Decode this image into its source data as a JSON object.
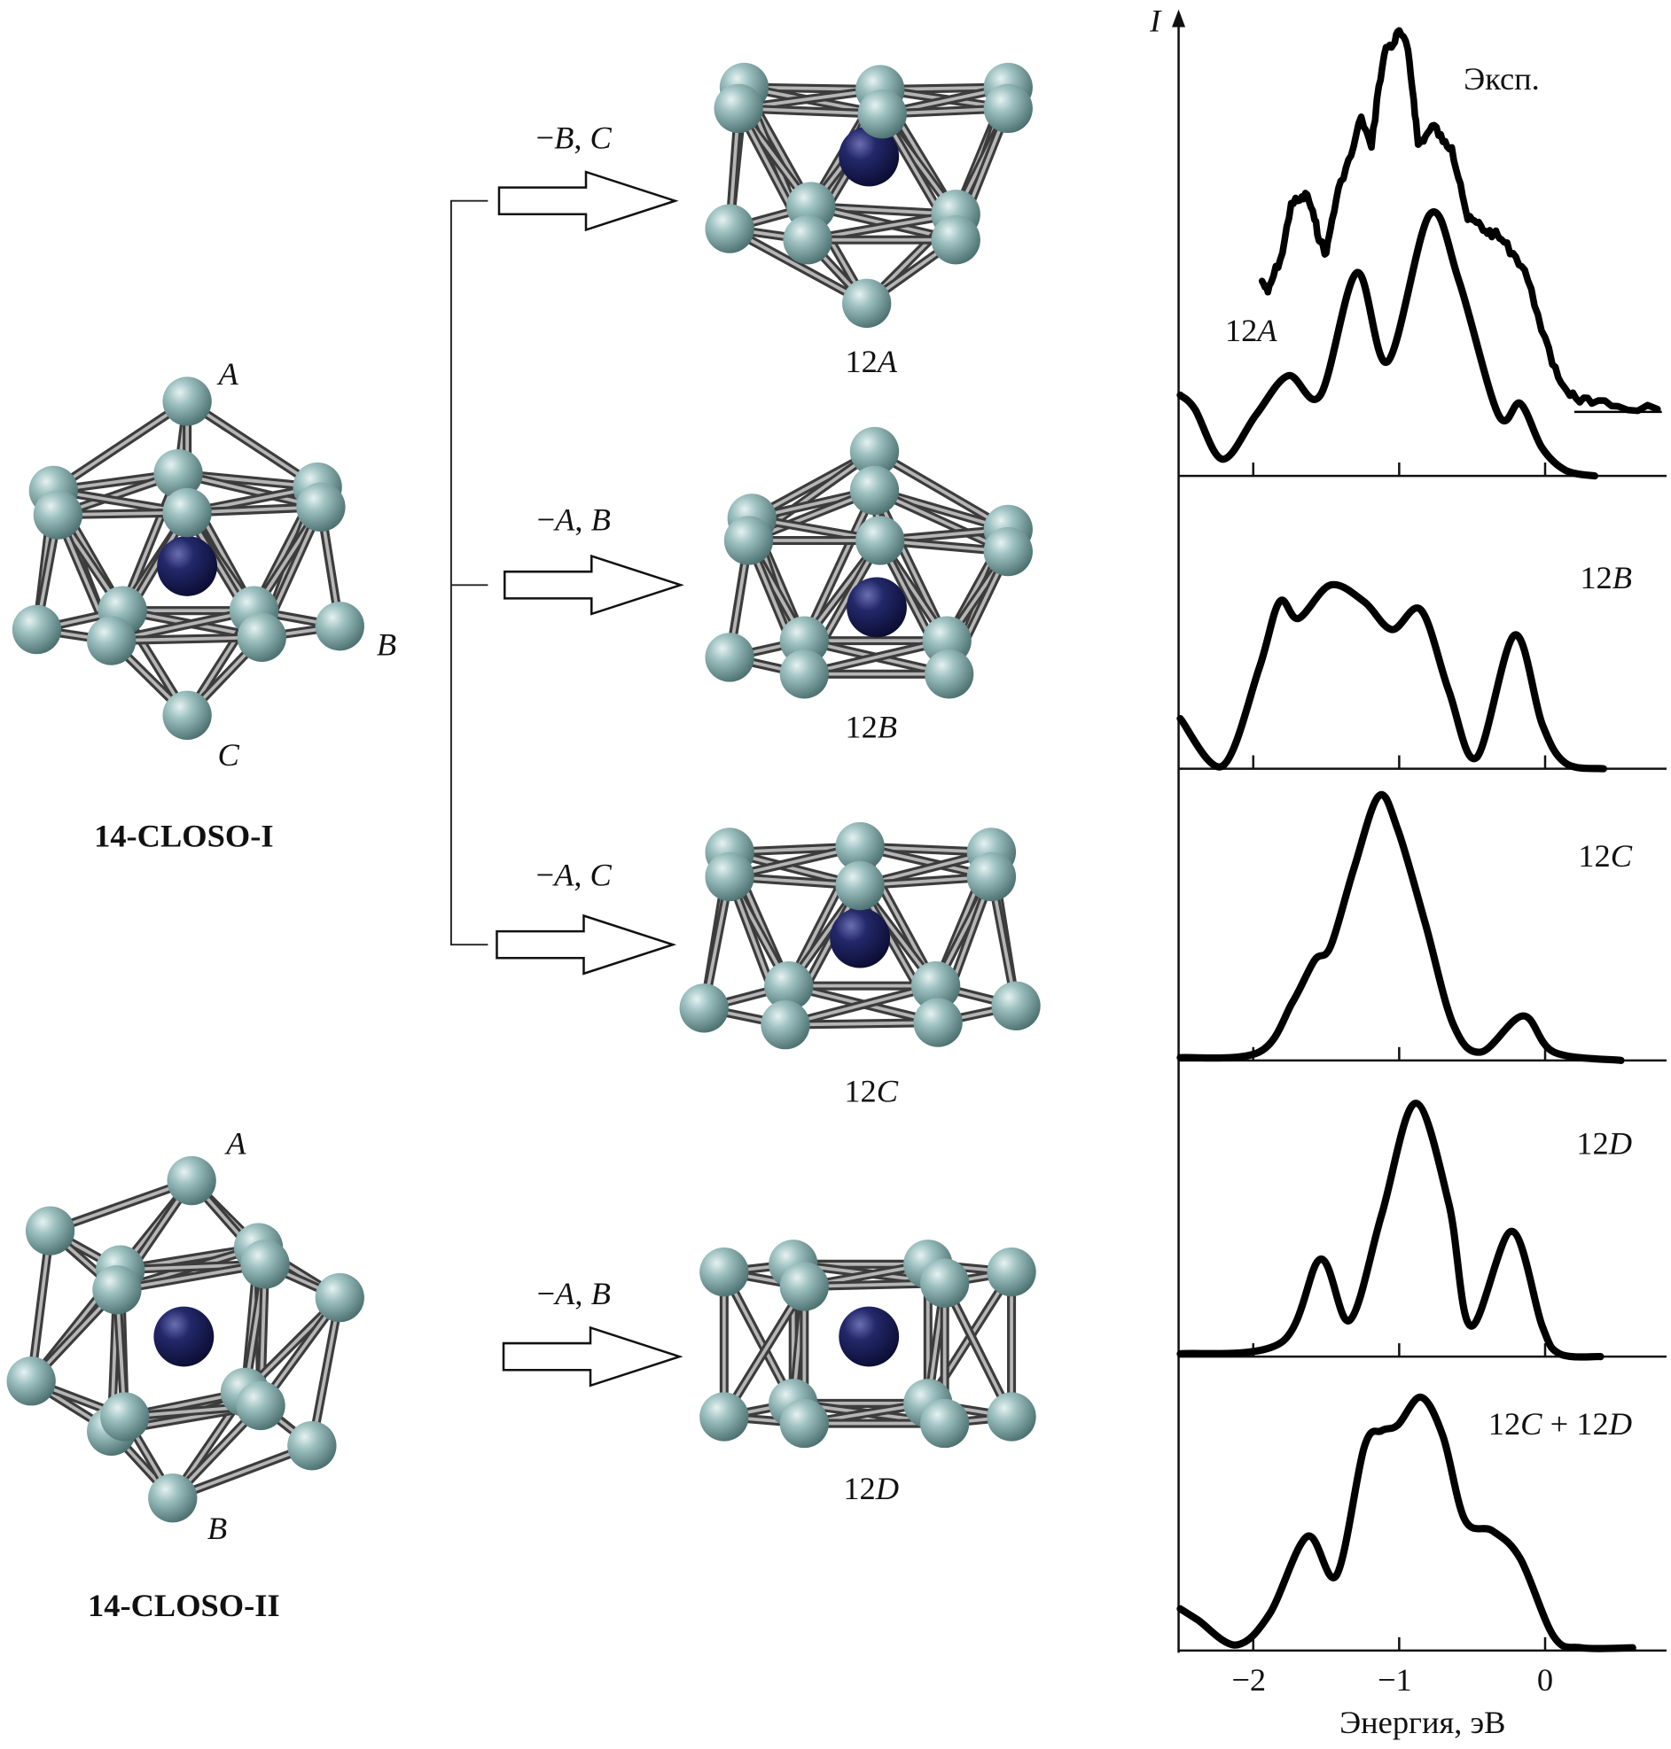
{
  "scheme": {
    "parents": [
      {
        "name": "14-CLOSO-I",
        "atom_labels": [
          "A",
          "B",
          "C"
        ]
      },
      {
        "name": "14-CLOSO-II",
        "atom_labels": [
          "A",
          "B"
        ]
      }
    ],
    "transitions": [
      {
        "removed": [
          {
            "t": "−"
          },
          {
            "t": "B",
            "i": true
          },
          {
            "t": ", "
          },
          {
            "t": "C",
            "i": true
          }
        ],
        "product": [
          {
            "t": "12"
          },
          {
            "t": "A",
            "i": true
          }
        ]
      },
      {
        "removed": [
          {
            "t": "−"
          },
          {
            "t": "A",
            "i": true
          },
          {
            "t": ", "
          },
          {
            "t": "B",
            "i": true
          }
        ],
        "product": [
          {
            "t": "12"
          },
          {
            "t": "B",
            "i": true
          }
        ]
      },
      {
        "removed": [
          {
            "t": "−"
          },
          {
            "t": "A",
            "i": true
          },
          {
            "t": ", "
          },
          {
            "t": "C",
            "i": true
          }
        ],
        "product": [
          {
            "t": "12"
          },
          {
            "t": "C",
            "i": true
          }
        ]
      },
      {
        "removed": [
          {
            "t": "−"
          },
          {
            "t": "A",
            "i": true
          },
          {
            "t": ", "
          },
          {
            "t": "B",
            "i": true
          }
        ],
        "product": [
          {
            "t": "12"
          },
          {
            "t": "D",
            "i": true
          }
        ]
      }
    ],
    "colors": {
      "cage_atom": "#86abab",
      "central_atom": "#1c1f55",
      "bond": "#6e6e6e"
    }
  },
  "chart_data": {
    "type": "line",
    "stacked_panels": true,
    "xlabel": "Энергия, эВ",
    "ylabel": "I",
    "xlim": [
      -2.5,
      0.8
    ],
    "xticks": [
      -2,
      -1,
      0
    ],
    "xtick_labels": [
      "−2",
      "−1",
      "0"
    ],
    "intensity_units": "arbitrary",
    "panels": [
      {
        "labels": [
          {
            "text": [
              {
                "t": "Эксп."
              }
            ],
            "series": "exp"
          },
          {
            "text": [
              {
                "t": "12"
              },
              {
                "t": "A",
                "i": true
              }
            ],
            "series": "12A"
          }
        ],
        "series": [
          {
            "id": "exp",
            "style": "jagged",
            "points": [
              [
                -1.94,
                0.7
              ],
              [
                -1.9,
                0.66
              ],
              [
                -1.86,
                0.72
              ],
              [
                -1.8,
                0.8
              ],
              [
                -1.74,
                0.98
              ],
              [
                -1.68,
                0.99
              ],
              [
                -1.63,
                1.01
              ],
              [
                -1.58,
                0.92
              ],
              [
                -1.54,
                0.84
              ],
              [
                -1.5,
                0.8
              ],
              [
                -1.46,
                0.92
              ],
              [
                -1.4,
                1.06
              ],
              [
                -1.33,
                1.15
              ],
              [
                -1.26,
                1.29
              ],
              [
                -1.19,
                1.18
              ],
              [
                -1.14,
                1.4
              ],
              [
                -1.09,
                1.54
              ],
              [
                -1.04,
                1.55
              ],
              [
                -1.0,
                1.6
              ],
              [
                -0.94,
                1.53
              ],
              [
                -0.9,
                1.35
              ],
              [
                -0.87,
                1.19
              ],
              [
                -0.82,
                1.22
              ],
              [
                -0.76,
                1.26
              ],
              [
                -0.7,
                1.2
              ],
              [
                -0.64,
                1.18
              ],
              [
                -0.58,
                1.05
              ],
              [
                -0.53,
                0.92
              ],
              [
                -0.47,
                0.91
              ],
              [
                -0.41,
                0.88
              ],
              [
                -0.35,
                0.87
              ],
              [
                -0.3,
                0.85
              ],
              [
                -0.22,
                0.8
              ],
              [
                -0.14,
                0.74
              ],
              [
                -0.05,
                0.58
              ],
              [
                0.05,
                0.4
              ],
              [
                0.13,
                0.32
              ],
              [
                0.21,
                0.28
              ],
              [
                0.32,
                0.26
              ],
              [
                0.5,
                0.25
              ],
              [
                0.77,
                0.24
              ]
            ]
          },
          {
            "id": "12A",
            "style": "smooth",
            "points": [
              [
                -2.5,
                0.29
              ],
              [
                -2.4,
                0.24
              ],
              [
                -2.21,
                0.06
              ],
              [
                -1.98,
                0.22
              ],
              [
                -1.76,
                0.36
              ],
              [
                -1.54,
                0.29
              ],
              [
                -1.29,
                0.73
              ],
              [
                -1.08,
                0.41
              ],
              [
                -0.79,
                0.94
              ],
              [
                -0.59,
                0.7
              ],
              [
                -0.32,
                0.22
              ],
              [
                -0.17,
                0.26
              ],
              [
                -0.02,
                0.1
              ],
              [
                0.14,
                0.02
              ],
              [
                0.34,
                0.0
              ]
            ]
          }
        ],
        "reference_level": {
          "value": 0.23,
          "from": 0.2,
          "to": 0.8
        }
      },
      {
        "labels": [
          {
            "text": [
              {
                "t": "12"
              },
              {
                "t": "B",
                "i": true
              }
            ],
            "series": "12B"
          }
        ],
        "series": [
          {
            "id": "12B",
            "style": "smooth",
            "points": [
              [
                -2.5,
                0.18
              ],
              [
                -2.21,
                0.01
              ],
              [
                -1.96,
                0.36
              ],
              [
                -1.82,
                0.6
              ],
              [
                -1.69,
                0.54
              ],
              [
                -1.47,
                0.66
              ],
              [
                -1.24,
                0.6
              ],
              [
                -1.05,
                0.5
              ],
              [
                -0.85,
                0.57
              ],
              [
                -0.66,
                0.28
              ],
              [
                -0.47,
                0.04
              ],
              [
                -0.21,
                0.48
              ],
              [
                -0.02,
                0.16
              ],
              [
                0.14,
                0.02
              ],
              [
                0.4,
                0.0
              ]
            ]
          }
        ]
      },
      {
        "labels": [
          {
            "text": [
              {
                "t": "12"
              },
              {
                "t": "C",
                "i": true
              }
            ],
            "series": "12C"
          }
        ],
        "series": [
          {
            "id": "12C",
            "style": "smooth",
            "points": [
              [
                -2.5,
                0.01
              ],
              [
                -1.96,
                0.03
              ],
              [
                -1.73,
                0.21
              ],
              [
                -1.58,
                0.36
              ],
              [
                -1.47,
                0.41
              ],
              [
                -1.31,
                0.69
              ],
              [
                -1.14,
                0.95
              ],
              [
                -1.01,
                0.83
              ],
              [
                -0.82,
                0.49
              ],
              [
                -0.63,
                0.13
              ],
              [
                -0.44,
                0.03
              ],
              [
                -0.15,
                0.16
              ],
              [
                0.06,
                0.03
              ],
              [
                0.52,
                0.0
              ]
            ]
          }
        ]
      },
      {
        "labels": [
          {
            "text": [
              {
                "t": "12"
              },
              {
                "t": "D",
                "i": true
              }
            ],
            "series": "12D"
          }
        ],
        "series": [
          {
            "id": "12D",
            "style": "smooth",
            "points": [
              [
                -2.5,
                0.01
              ],
              [
                -1.81,
                0.05
              ],
              [
                -1.54,
                0.35
              ],
              [
                -1.34,
                0.13
              ],
              [
                -1.12,
                0.51
              ],
              [
                -0.89,
                0.91
              ],
              [
                -0.66,
                0.55
              ],
              [
                -0.51,
                0.11
              ],
              [
                -0.23,
                0.45
              ],
              [
                -0.02,
                0.11
              ],
              [
                0.1,
                0.01
              ],
              [
                0.38,
                0.0
              ]
            ]
          }
        ]
      },
      {
        "labels": [
          {
            "text": [
              {
                "t": "12"
              },
              {
                "t": "C",
                "i": true
              },
              {
                "t": " + 12"
              },
              {
                "t": "D",
                "i": true
              }
            ],
            "series": "12C+12D"
          }
        ],
        "series": [
          {
            "id": "12C+12D",
            "style": "smooth",
            "points": [
              [
                -2.5,
                0.15
              ],
              [
                -2.38,
                0.11
              ],
              [
                -2.12,
                0.02
              ],
              [
                -1.89,
                0.13
              ],
              [
                -1.63,
                0.41
              ],
              [
                -1.43,
                0.27
              ],
              [
                -1.24,
                0.73
              ],
              [
                -1.12,
                0.79
              ],
              [
                -1.01,
                0.81
              ],
              [
                -0.85,
                0.91
              ],
              [
                -0.7,
                0.77
              ],
              [
                -0.55,
                0.47
              ],
              [
                -0.36,
                0.43
              ],
              [
                -0.17,
                0.33
              ],
              [
                0.06,
                0.05
              ],
              [
                0.25,
                0.01
              ],
              [
                0.6,
                0.01
              ]
            ]
          }
        ]
      }
    ]
  }
}
